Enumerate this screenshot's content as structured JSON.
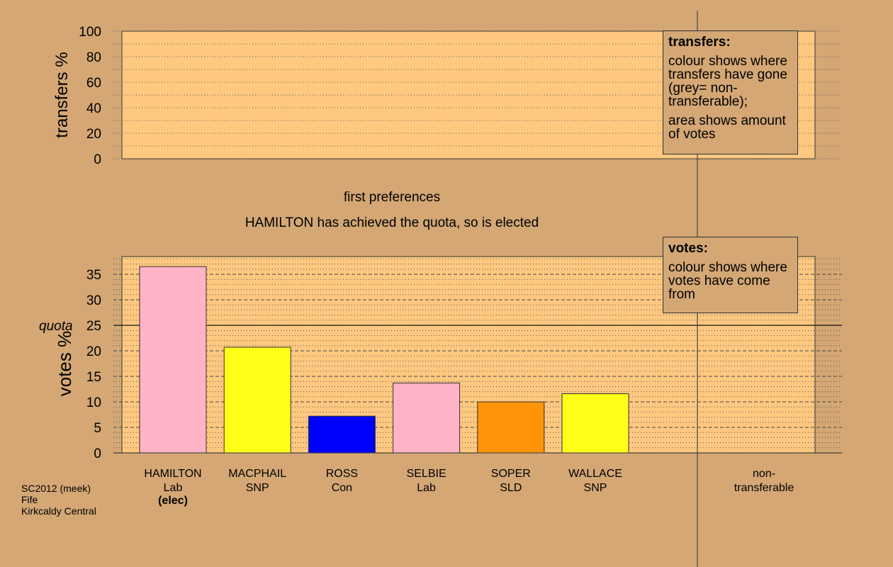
{
  "chart_data": [
    {
      "type": "bar",
      "ylabel": "transfers %",
      "ylim": [
        0,
        100
      ],
      "yticks": [
        0,
        20,
        40,
        60,
        80,
        100
      ],
      "grid": true,
      "values": []
    },
    {
      "type": "bar",
      "title": "first preferences",
      "subtitle": "HAMILTON has achieved the quota, so is elected",
      "ylabel": "votes %",
      "ylim": [
        0,
        35
      ],
      "yticks": [
        0,
        5,
        10,
        15,
        20,
        25,
        30,
        35
      ],
      "grid": true,
      "quota": 25,
      "quota_label": "quota",
      "candidates": [
        {
          "name": "HAMILTON",
          "party": "Lab",
          "status": "(elec)",
          "value": 36.5,
          "color": "#ffb3c6"
        },
        {
          "name": "MACPHAIL",
          "party": "SNP",
          "status": "",
          "value": 20.7,
          "color": "#ffff1a"
        },
        {
          "name": "ROSS",
          "party": "Con",
          "status": "",
          "value": 7.2,
          "color": "#0000ff"
        },
        {
          "name": "SELBIE",
          "party": "Lab",
          "status": "",
          "value": 13.7,
          "color": "#ffb3c6"
        },
        {
          "name": "SOPER",
          "party": "SLD",
          "status": "",
          "value": 10.0,
          "color": "#ff9408"
        },
        {
          "name": "WALLACE",
          "party": "SNP",
          "status": "",
          "value": 11.6,
          "color": "#ffff1a"
        }
      ],
      "nontransferable_label_1": "non-",
      "nontransferable_label_2": "transferable"
    }
  ],
  "notes": {
    "transfers": {
      "heading": "transfers:",
      "text1": "colour shows where transfers have gone (grey= non-transferable);",
      "text2": "area shows amount of votes"
    },
    "votes": {
      "heading": "votes:",
      "text1": "colour shows where votes have come from"
    }
  },
  "footer": {
    "line1": "SC2012 (meek)",
    "line2": "Fife",
    "line3": "Kirkcaldy Central"
  },
  "colors": {
    "background": "#d4a775",
    "panel": "#ffc880"
  }
}
